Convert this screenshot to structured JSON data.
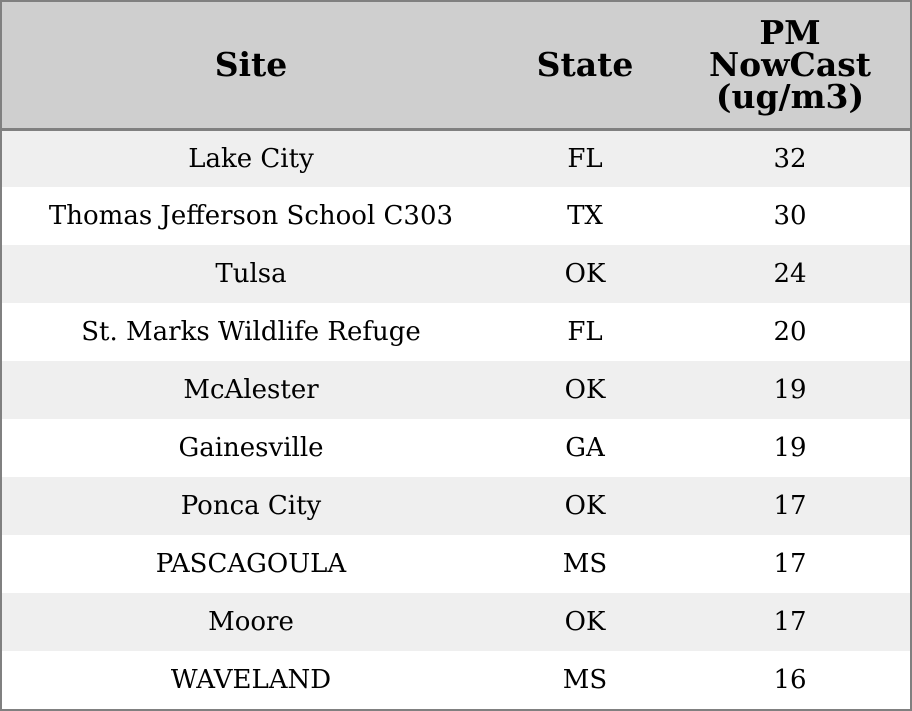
{
  "chart_data": {
    "type": "table",
    "columns": [
      "Site",
      "State",
      "PM NowCast (ug/m3)"
    ],
    "header": {
      "site": "Site",
      "state": "State",
      "pm_line1": "PM",
      "pm_line2": "NowCast",
      "pm_line3": "(ug/m3)"
    },
    "rows": [
      {
        "site": "Lake City",
        "state": "FL",
        "value": 32
      },
      {
        "site": "Thomas Jefferson School C303",
        "state": "TX",
        "value": 30
      },
      {
        "site": "Tulsa",
        "state": "OK",
        "value": 24
      },
      {
        "site": "St. Marks Wildlife Refuge",
        "state": "FL",
        "value": 20
      },
      {
        "site": "McAlester",
        "state": "OK",
        "value": 19
      },
      {
        "site": "Gainesville",
        "state": "GA",
        "value": 19
      },
      {
        "site": "Ponca City",
        "state": "OK",
        "value": 17
      },
      {
        "site": "PASCAGOULA",
        "state": "MS",
        "value": 17
      },
      {
        "site": "Moore",
        "state": "OK",
        "value": 17
      },
      {
        "site": "WAVELAND",
        "state": "MS",
        "value": 16
      }
    ]
  },
  "colors": {
    "header_bg": "#cfcfcf",
    "stripe_bg": "#efefef",
    "row_bg": "#ffffff",
    "border": "#808080"
  }
}
